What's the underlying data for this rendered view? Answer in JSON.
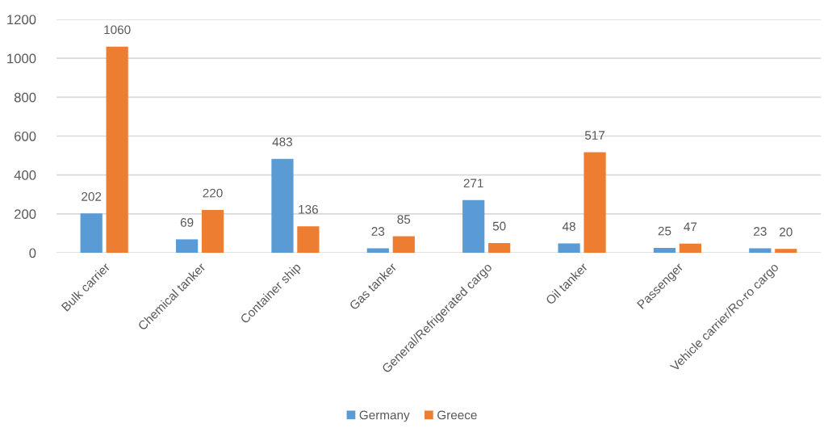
{
  "chart_data": {
    "type": "bar",
    "categories": [
      "Bulk carrier",
      "Chemical tanker",
      "Container ship",
      "Gas tanker",
      "General/Refrigerated cargo",
      "Oil tanker",
      "Passenger",
      "Vehicle carrier/Ro-ro cargo"
    ],
    "series": [
      {
        "name": "Germany",
        "color": "#5b9bd5",
        "values": [
          202,
          69,
          483,
          23,
          271,
          48,
          25,
          23
        ]
      },
      {
        "name": "Greece",
        "color": "#ed7d31",
        "values": [
          1060,
          220,
          136,
          85,
          50,
          517,
          47,
          20
        ]
      }
    ],
    "ylim": [
      0,
      1200
    ],
    "yticks": [
      0,
      200,
      400,
      600,
      800,
      1000,
      1200
    ],
    "grid": "y",
    "legend": "bottom",
    "data_labels": true
  }
}
